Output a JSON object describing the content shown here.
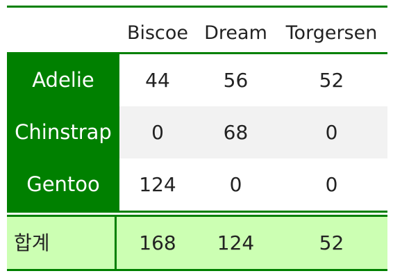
{
  "table": {
    "columns": [
      "Biscoe",
      "Dream",
      "Torgersen"
    ],
    "rows": [
      {
        "label": "Adelie",
        "values": [
          "44",
          "56",
          "52"
        ]
      },
      {
        "label": "Chinstrap",
        "values": [
          "0",
          "68",
          "0"
        ]
      },
      {
        "label": "Gentoo",
        "values": [
          "124",
          "0",
          "0"
        ]
      }
    ],
    "total": {
      "label": "합계",
      "values": [
        "168",
        "124",
        "52"
      ]
    }
  },
  "colors": {
    "header_fill": "#008000",
    "row_label_fill": "#008000",
    "stripe_fill": "#f2f2f2",
    "total_fill": "#ccffb3",
    "rule_color": "#008000"
  }
}
